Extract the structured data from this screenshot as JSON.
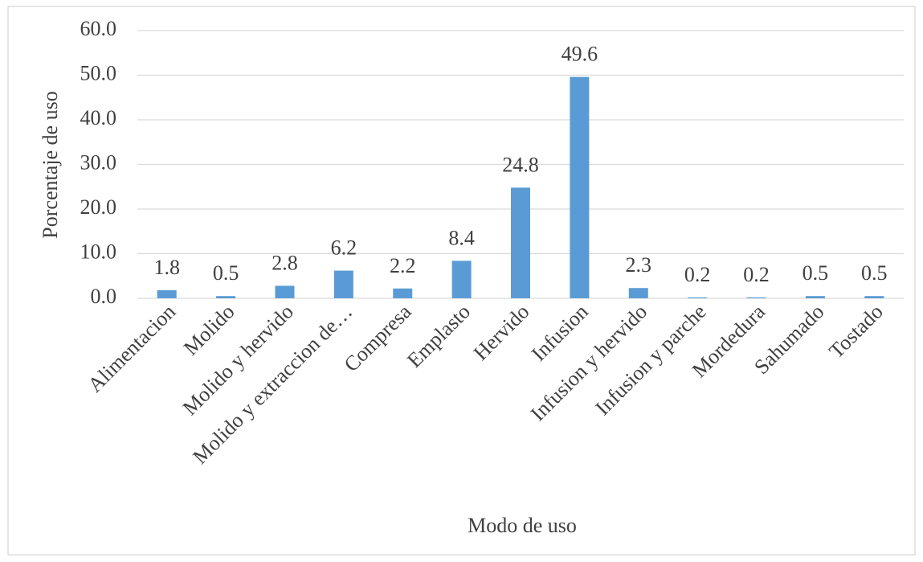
{
  "chart_data": {
    "type": "bar",
    "x_label": "Modo de uso",
    "y_label": "Porcentaje de uso",
    "categories": [
      "Alimentacion",
      "Molido",
      "Molido y hervido",
      "Molido y extraccion de…",
      "Compresa",
      "Emplasto",
      "Hervido",
      "Infusion",
      "Infusion y hervido",
      "Infusion y parche",
      "Mordedura",
      "Sahumado",
      "Tostado"
    ],
    "values": [
      1.8,
      0.5,
      2.8,
      6.2,
      2.2,
      8.4,
      24.8,
      49.6,
      2.3,
      0.2,
      0.2,
      0.5,
      0.5
    ],
    "color": "#5b9bd5",
    "ylim": [
      0,
      60
    ],
    "yticks": [
      {
        "value": 0,
        "label": "0.0"
      },
      {
        "value": 10,
        "label": "10.0"
      },
      {
        "value": 20,
        "label": "20.0"
      },
      {
        "value": 30,
        "label": "30.0"
      },
      {
        "value": 40,
        "label": "40.0"
      },
      {
        "value": 50,
        "label": "50.0"
      },
      {
        "value": 60,
        "label": "60.0"
      }
    ],
    "grid": true
  }
}
